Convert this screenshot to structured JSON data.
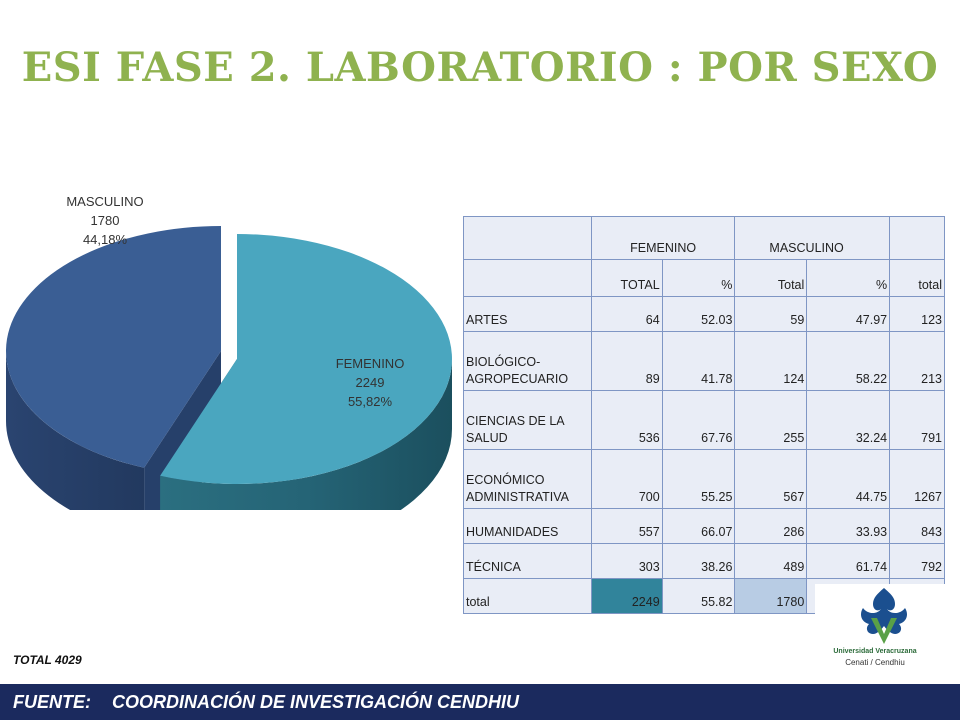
{
  "title": "ESI FASE 2. LABORATORIO : POR SEXO",
  "chart_data": {
    "type": "pie",
    "slices": [
      {
        "name": "FEMENINO",
        "value": 2249,
        "percent": "55,82%",
        "color": "#4aa6bf"
      },
      {
        "name": "MASCULINO",
        "value": 1780,
        "percent": "44,18%",
        "color": "#3a5e94"
      }
    ],
    "exploded": true,
    "style": "3d"
  },
  "table": {
    "group_headers": [
      "FEMENINO",
      "MASCULINO"
    ],
    "columns": [
      "TOTAL",
      "%",
      "Total",
      "%",
      "total"
    ],
    "rows": [
      {
        "label": "ARTES",
        "values": [
          "64",
          "52.03",
          "59",
          "47.97",
          "123"
        ]
      },
      {
        "label": "BIOLÓGICO-\nAGROPECUARIO",
        "values": [
          "89",
          "41.78",
          "124",
          "58.22",
          "213"
        ]
      },
      {
        "label": "CIENCIAS DE LA\nSALUD",
        "values": [
          "536",
          "67.76",
          "255",
          "32.24",
          "791"
        ]
      },
      {
        "label": "ECONÓMICO\nADMINISTRATIVA",
        "values": [
          "700",
          "55.25",
          "567",
          "44.75",
          "1267"
        ]
      },
      {
        "label": "HUMANIDADES",
        "values": [
          "557",
          "66.07",
          "286",
          "33.93",
          "843"
        ]
      },
      {
        "label": "TÉCNICA",
        "values": [
          "303",
          "38.26",
          "489",
          "61.74",
          "792"
        ]
      },
      {
        "label": "total",
        "values": [
          "2249",
          "55.82",
          "1780",
          "",
          ""
        ]
      }
    ]
  },
  "logo": {
    "line1": "Universidad Veracruzana",
    "line2": "Cenati / Cendhiu",
    "colors": [
      "#1b4f8f",
      "#5aa047"
    ]
  },
  "total_note": "TOTAL 4029",
  "footer": {
    "label": "FUENTE:",
    "text": "COORDINACIÓN DE INVESTIGACIÓN CENDHIU"
  }
}
